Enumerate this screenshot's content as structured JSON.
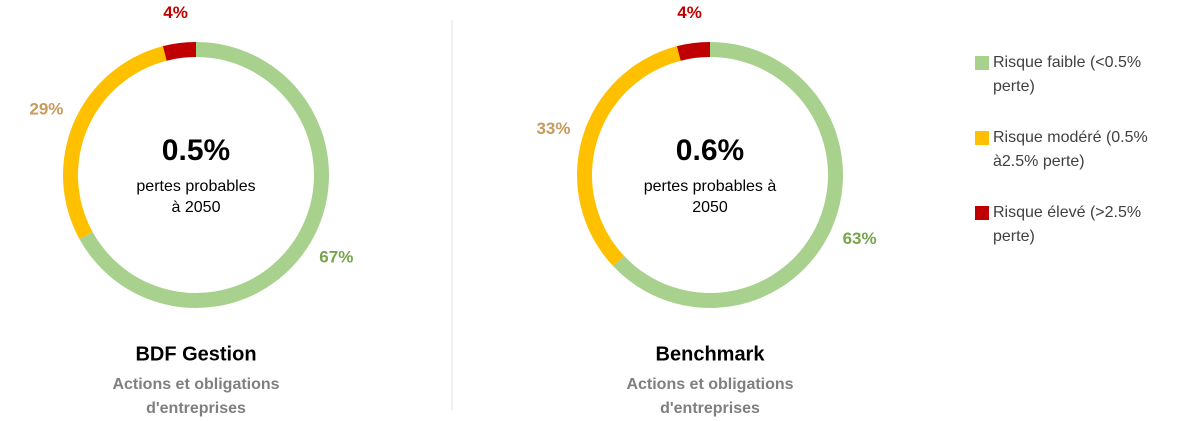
{
  "legend": [
    {
      "name": [
        "Risque faible (<0.5%",
        "perte)"
      ],
      "color": "#a9d18e"
    },
    {
      "name": [
        "Risque modéré (0.5%",
        "à2.5% perte)"
      ],
      "color": "#ffc000"
    },
    {
      "name": [
        "Risque élevé (>2.5%",
        "perte)"
      ],
      "color": "#c00000"
    }
  ],
  "chart_data": [
    {
      "type": "donut",
      "title": "BDF Gestion",
      "subtitle": [
        "Actions et obligations",
        "d'entreprises"
      ],
      "center_value": "0.5%",
      "center_text": [
        "pertes probables",
        "à 2050"
      ],
      "values": [
        67,
        29,
        4
      ],
      "value_labels": [
        "67%",
        "29%",
        "4%"
      ],
      "label_colors": [
        "#76a54a",
        "#c99a5b",
        "#c00000"
      ]
    },
    {
      "type": "donut",
      "title": "Benchmark",
      "subtitle": [
        "Actions et obligations",
        "d'entreprises"
      ],
      "center_value": "0.6%",
      "center_text": [
        "pertes probables à",
        "2050"
      ],
      "values": [
        63,
        33,
        4
      ],
      "value_labels": [
        "63%",
        "33%",
        "4%"
      ],
      "label_colors": [
        "#76a54a",
        "#c99a5b",
        "#c00000"
      ]
    }
  ]
}
